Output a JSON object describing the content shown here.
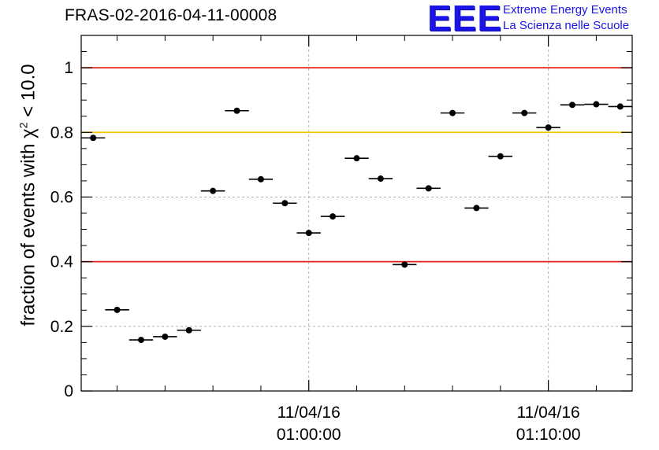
{
  "title": "FRAS-02-2016-04-11-00008",
  "logo": {
    "mark": "EEE",
    "line1": "Extreme Energy Events",
    "line2": "La Scienza nelle Scuole",
    "color": "#1a14e6"
  },
  "chart_data": {
    "type": "scatter",
    "title": "FRAS-02-2016-04-11-00008",
    "ylabel_prefix": "fraction of events with ",
    "ylabel_symbol": "χ",
    "ylabel_sup": "2",
    "ylabel_suffix": " < 10.0",
    "xlabel": "",
    "ylim": [
      0,
      1.1
    ],
    "yticks": [
      0,
      0.2,
      0.4,
      0.6,
      0.8,
      1
    ],
    "ytick_labels": [
      "0",
      "0.2",
      "0.4",
      "0.6",
      "0.8",
      "1"
    ],
    "xlim_minutes": [
      -9.5,
      13.5
    ],
    "x_tick_labels": [
      {
        "minute": 0,
        "date": "11/04/16",
        "time": "01:00:00"
      },
      {
        "minute": 10,
        "date": "11/04/16",
        "time": "01:10:00"
      }
    ],
    "grid": true,
    "reference_lines": [
      {
        "y": 1.0,
        "color": "#e8201a"
      },
      {
        "y": 0.8,
        "color": "#f5c400"
      },
      {
        "y": 0.4,
        "color": "#e8201a"
      }
    ],
    "series": [
      {
        "x_minutes": [
          -9,
          -8,
          -7,
          -6,
          -5,
          -4,
          -3,
          -2,
          -1,
          0,
          1,
          2,
          3,
          4,
          5,
          6,
          7,
          8,
          9,
          10,
          11,
          12,
          13
        ],
        "y": [
          0.783,
          0.251,
          0.158,
          0.168,
          0.188,
          0.619,
          0.867,
          0.655,
          0.581,
          0.489,
          0.54,
          0.72,
          0.657,
          0.391,
          0.627,
          0.86,
          0.566,
          0.726,
          0.86,
          0.815,
          0.885,
          0.887,
          0.88
        ],
        "x_error_minutes": 0.5,
        "color": "#000000"
      }
    ]
  }
}
